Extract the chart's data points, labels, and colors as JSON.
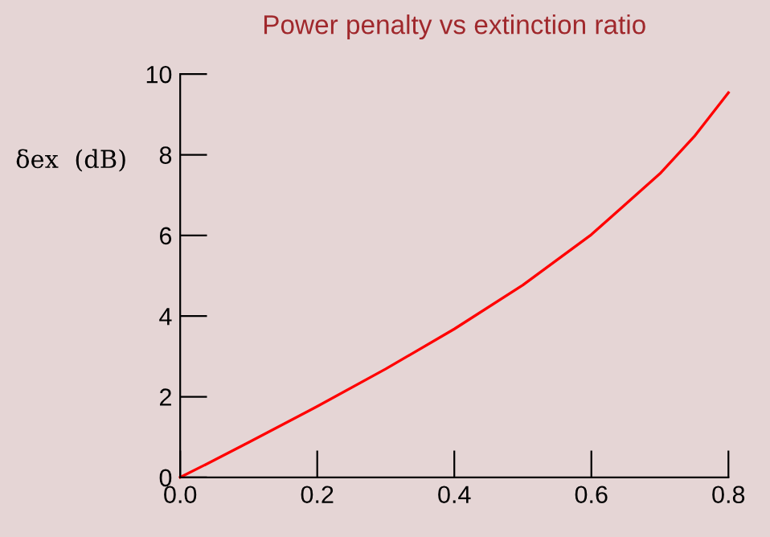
{
  "chart_data": {
    "type": "line",
    "title": "Power penalty vs extinction ratio",
    "ylabel": "δex  (dB)",
    "x": [
      0,
      0.05,
      0.1,
      0.2,
      0.3,
      0.4,
      0.5,
      0.6,
      0.7,
      0.75,
      0.8
    ],
    "series": [
      {
        "color": "#ff0000",
        "values": [
          0,
          0.43,
          0.87,
          1.76,
          2.69,
          3.68,
          4.77,
          6.02,
          7.53,
          8.45,
          9.54
        ]
      }
    ],
    "xlim": [
      0,
      0.8
    ],
    "ylim": [
      0,
      10
    ],
    "xticks": [
      {
        "value": 0,
        "label": "0.0"
      },
      0.2,
      0.4,
      0.6,
      0.8
    ],
    "yticks": [
      0,
      2,
      4,
      6,
      8,
      10
    ],
    "grid": false,
    "legend": false,
    "marker": "none",
    "line_style": "solid"
  }
}
